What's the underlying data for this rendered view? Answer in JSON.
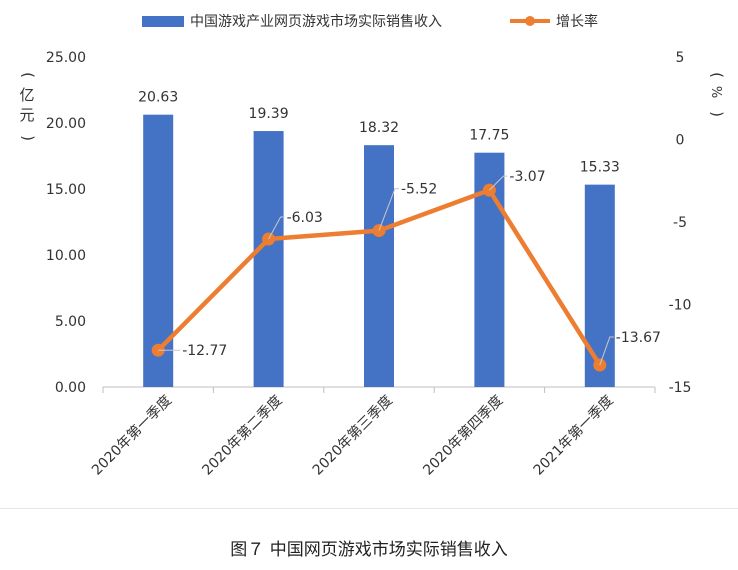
{
  "chart_data": {
    "type": "bar",
    "categories": [
      "2020年第一季度",
      "2020年第二季度",
      "2020年第三季度",
      "2020年第四季度",
      "2021年第一季度"
    ],
    "series": [
      {
        "name": "中国游戏产业网页游戏市场实际销售收入",
        "type": "bar",
        "axis": "left",
        "color": "#4472C4",
        "values": [
          20.63,
          19.39,
          18.32,
          17.75,
          15.33
        ],
        "labels": [
          "20.63",
          "19.39",
          "18.32",
          "17.75",
          "15.33"
        ]
      },
      {
        "name": "增长率",
        "type": "line",
        "axis": "right",
        "color": "#ED7D31",
        "values": [
          -12.77,
          -6.03,
          -5.52,
          -3.07,
          -13.67
        ],
        "labels": [
          "-12.77",
          "-6.03",
          "-5.52",
          "-3.07",
          "-13.67"
        ]
      }
    ],
    "y_left": {
      "label": "亿元",
      "ylim": [
        0,
        25
      ],
      "ticks": [
        "0.00",
        "5.00",
        "10.00",
        "15.00",
        "20.00",
        "25.00"
      ]
    },
    "y_right": {
      "label": "%",
      "ylim": [
        -15,
        5
      ],
      "ticks": [
        "5",
        "0",
        "-5",
        "-10",
        "-15"
      ]
    },
    "legend_position": "top",
    "grid": false
  },
  "caption": "图７  中国网页游戏市场实际销售收入"
}
